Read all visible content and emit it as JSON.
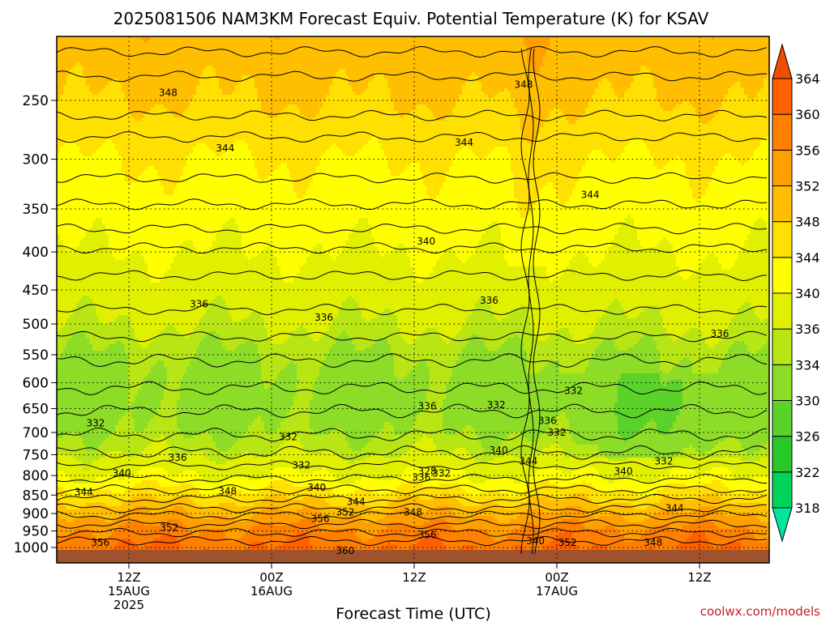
{
  "chart_data": {
    "type": "heatmap",
    "title": "2025081506 NAM3KM Forecast Equiv. Potential Temperature (K) for KSAV",
    "xlabel": "Forecast Time (UTC)",
    "ylabel": "",
    "y_scale": "log",
    "y_inverted": true,
    "ylim": [
      1000,
      200
    ],
    "yticks": [
      250,
      300,
      350,
      400,
      450,
      500,
      550,
      600,
      650,
      700,
      750,
      800,
      850,
      900,
      950,
      1000
    ],
    "x_ticks": [
      {
        "hour": 12,
        "line1": "12Z",
        "line2": "15AUG",
        "line3": "2025"
      },
      {
        "hour": 24,
        "line1": "00Z",
        "line2": "16AUG",
        "line3": ""
      },
      {
        "hour": 36,
        "line1": "12Z",
        "line2": "",
        "line3": ""
      },
      {
        "hour": 48,
        "line1": "00Z",
        "line2": "17AUG",
        "line3": ""
      },
      {
        "hour": 60,
        "line1": "12Z",
        "line2": "",
        "line3": ""
      }
    ],
    "x_range_hours": [
      6,
      66
    ],
    "grid": true,
    "colorbar": {
      "levels": [
        318,
        322,
        326,
        330,
        334,
        336,
        340,
        344,
        348,
        352,
        356,
        360,
        364
      ],
      "tick_labels": [
        "318",
        "322",
        "326",
        "330",
        "334",
        "336",
        "340",
        "344",
        "348",
        "352",
        "356",
        "360",
        "364"
      ],
      "colors": [
        "#00e5a0",
        "#00d35a",
        "#28c828",
        "#5ad22a",
        "#8cdc28",
        "#b8e614",
        "#e0f000",
        "#ffff00",
        "#ffe000",
        "#ffbe00",
        "#ffa000",
        "#ff8000",
        "#ff6000",
        "#f04d00"
      ],
      "range": [
        316,
        366
      ]
    },
    "layers": [
      {
        "p": 200,
        "theta": 351
      },
      {
        "p": 250,
        "theta": 348
      },
      {
        "p": 300,
        "theta": 344
      },
      {
        "p": 350,
        "theta": 342
      },
      {
        "p": 400,
        "theta": 340
      },
      {
        "p": 450,
        "theta": 338
      },
      {
        "p": 500,
        "theta": 336
      },
      {
        "p": 550,
        "theta": 334
      },
      {
        "p": 600,
        "theta": 333
      },
      {
        "p": 650,
        "theta": 333
      },
      {
        "p": 700,
        "theta": 334
      },
      {
        "p": 750,
        "theta": 336
      },
      {
        "p": 800,
        "theta": 340
      },
      {
        "p": 850,
        "theta": 346
      },
      {
        "p": 900,
        "theta": 352
      },
      {
        "p": 950,
        "theta": 357
      },
      {
        "p": 1000,
        "theta": 360
      }
    ],
    "contour_labels": [
      {
        "text": "348",
        "hour": 15.3,
        "p": 244
      },
      {
        "text": "348",
        "hour": 45.2,
        "p": 238
      },
      {
        "text": "344",
        "hour": 20.1,
        "p": 290
      },
      {
        "text": "344",
        "hour": 40.2,
        "p": 285
      },
      {
        "text": "344",
        "hour": 50.8,
        "p": 335
      },
      {
        "text": "340",
        "hour": 37.0,
        "p": 387
      },
      {
        "text": "336",
        "hour": 17.9,
        "p": 470
      },
      {
        "text": "336",
        "hour": 28.4,
        "p": 490
      },
      {
        "text": "336",
        "hour": 42.3,
        "p": 465
      },
      {
        "text": "336",
        "hour": 61.7,
        "p": 515
      },
      {
        "text": "336",
        "hour": 37.1,
        "p": 645
      },
      {
        "text": "332",
        "hour": 42.9,
        "p": 643
      },
      {
        "text": "332",
        "hour": 9.2,
        "p": 680
      },
      {
        "text": "332",
        "hour": 25.4,
        "p": 710
      },
      {
        "text": "336",
        "hour": 16.1,
        "p": 757
      },
      {
        "text": "332",
        "hour": 26.5,
        "p": 775
      },
      {
        "text": "340",
        "hour": 11.4,
        "p": 795
      },
      {
        "text": "340",
        "hour": 27.8,
        "p": 830
      },
      {
        "text": "348",
        "hour": 20.3,
        "p": 840
      },
      {
        "text": "344",
        "hour": 8.2,
        "p": 842
      },
      {
        "text": "344",
        "hour": 31.1,
        "p": 868
      },
      {
        "text": "352",
        "hour": 30.2,
        "p": 897
      },
      {
        "text": "356",
        "hour": 28.1,
        "p": 915
      },
      {
        "text": "348",
        "hour": 35.9,
        "p": 897
      },
      {
        "text": "352",
        "hour": 15.4,
        "p": 940
      },
      {
        "text": "356",
        "hour": 9.6,
        "p": 985
      },
      {
        "text": "356",
        "hour": 37.1,
        "p": 962
      },
      {
        "text": "360",
        "hour": 30.2,
        "p": 1010
      },
      {
        "text": "340",
        "hour": 43.1,
        "p": 740
      },
      {
        "text": "344",
        "hour": 45.6,
        "p": 765
      },
      {
        "text": "332",
        "hour": 38.3,
        "p": 795
      },
      {
        "text": "328",
        "hour": 37.1,
        "p": 790
      },
      {
        "text": "336",
        "hour": 36.6,
        "p": 805
      },
      {
        "text": "332",
        "hour": 49.4,
        "p": 615
      },
      {
        "text": "336",
        "hour": 47.2,
        "p": 675
      },
      {
        "text": "332",
        "hour": 48.0,
        "p": 700
      },
      {
        "text": "340",
        "hour": 53.6,
        "p": 790
      },
      {
        "text": "332",
        "hour": 57.0,
        "p": 765
      },
      {
        "text": "344",
        "hour": 57.9,
        "p": 885
      },
      {
        "text": "348",
        "hour": 56.1,
        "p": 985
      },
      {
        "text": "352",
        "hour": 48.9,
        "p": 985
      },
      {
        "text": "340",
        "hour": 46.2,
        "p": 980
      }
    ]
  },
  "credit": "coolwx.com/models"
}
